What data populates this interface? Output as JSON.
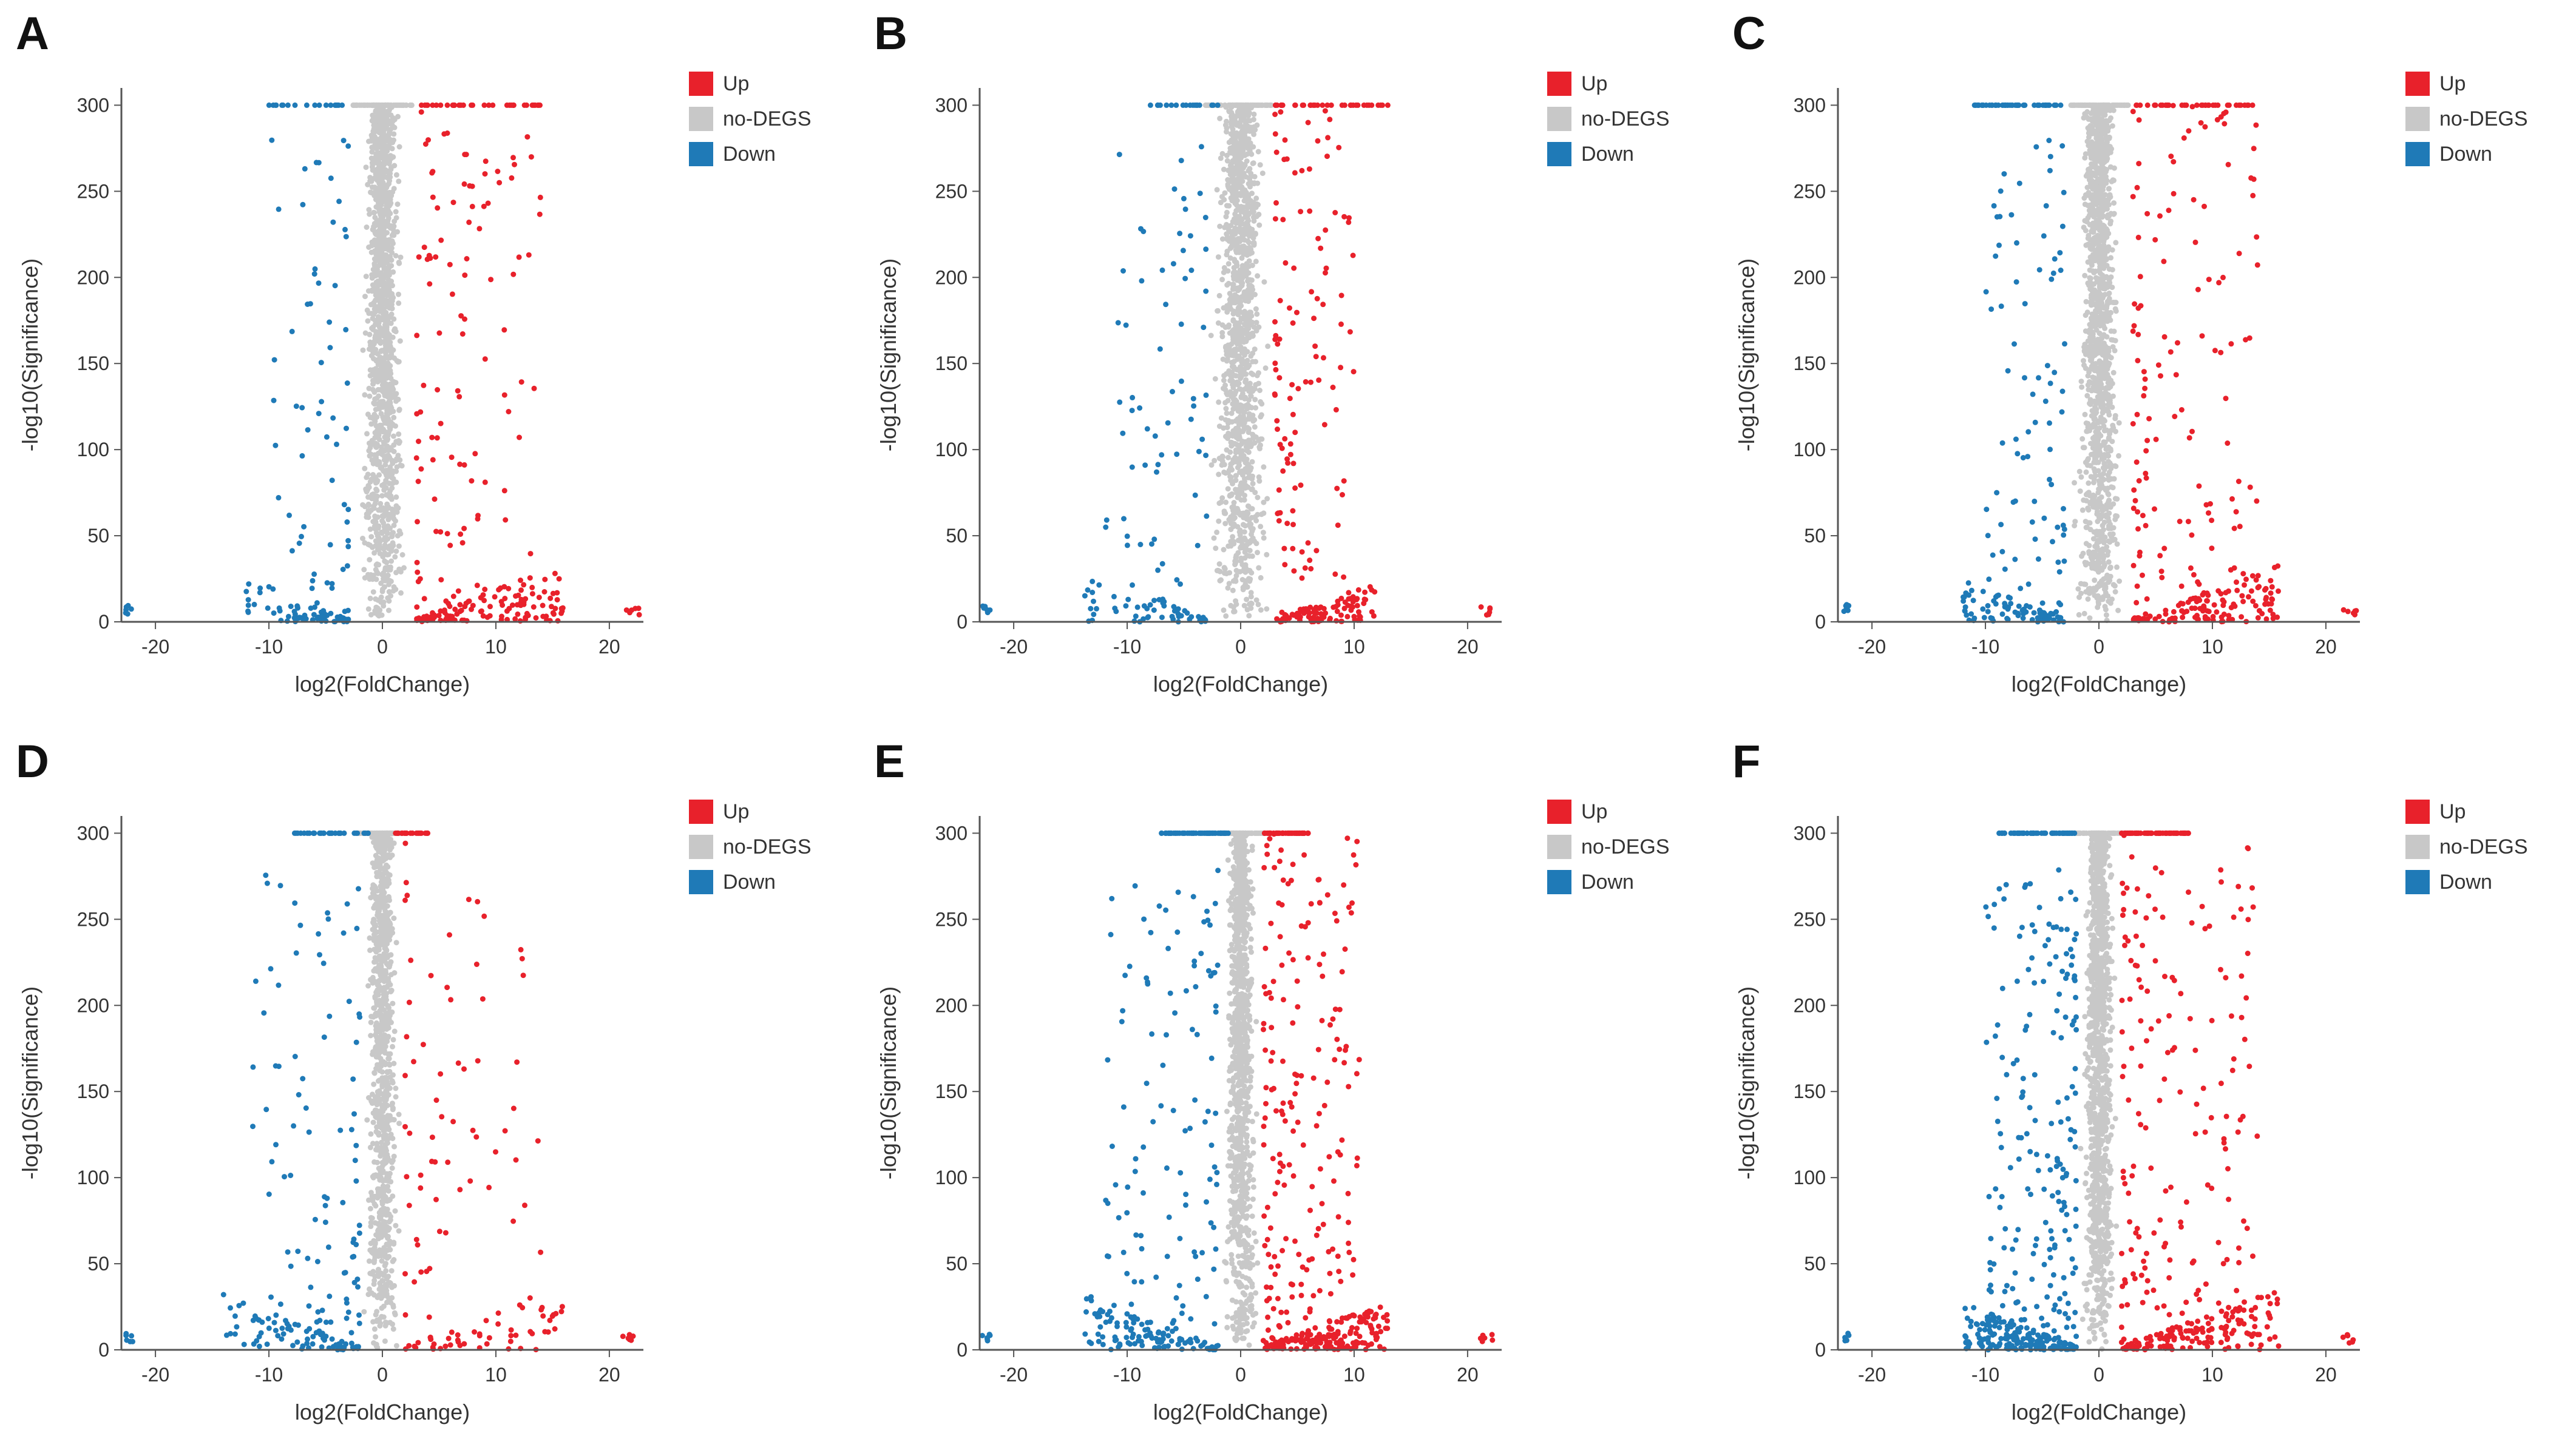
{
  "chart_data": [
    {
      "type": "scatter",
      "panel_label": "A",
      "xlabel": "log2(FoldChange)",
      "ylabel": "-log10(Significance)",
      "xlim": [
        -23,
        23
      ],
      "ylim": [
        0,
        310
      ],
      "x_ticks": [
        -20,
        -10,
        0,
        10,
        20
      ],
      "y_ticks": [
        0,
        50,
        100,
        150,
        200,
        250,
        300
      ],
      "legend": [
        "Up",
        "no-DEGS",
        "Down"
      ],
      "legend_placement": "top-right",
      "series": [
        {
          "name": "Up",
          "color": "#e8212b"
        },
        {
          "name": "no-DEGS",
          "color": "#c8c8c8"
        },
        {
          "name": "Down",
          "color": "#1f7ab7"
        }
      ],
      "profile": {
        "up_dots": 260,
        "down_dots": 150,
        "gray_dots": 1300,
        "xmax_up": 16,
        "xmin_down": -12,
        "top_up": [
          3,
          14
        ],
        "top_down": [
          -10,
          -3
        ],
        "gray_x": 2,
        "fc": 3,
        "outlier_up": 21.5,
        "outlier_down": -22
      }
    },
    {
      "type": "scatter",
      "panel_label": "B",
      "xlabel": "log2(FoldChange)",
      "ylabel": "-log10(Significance)",
      "xlim": [
        -23,
        23
      ],
      "ylim": [
        0,
        310
      ],
      "x_ticks": [
        -20,
        -10,
        0,
        10,
        20
      ],
      "y_ticks": [
        0,
        50,
        100,
        150,
        200,
        250,
        300
      ],
      "legend": [
        "Up",
        "no-DEGS",
        "Down"
      ],
      "legend_placement": "top-right",
      "series": [
        {
          "name": "Up",
          "color": "#e8212b"
        },
        {
          "name": "no-DEGS",
          "color": "#c8c8c8"
        },
        {
          "name": "Down",
          "color": "#1f7ab7"
        }
      ],
      "profile": {
        "up_dots": 240,
        "down_dots": 140,
        "gray_dots": 1300,
        "xmax_up": 12,
        "xmin_down": -14,
        "top_up": [
          3,
          13
        ],
        "top_down": [
          -9,
          -2
        ],
        "gray_x": 2.5,
        "fc": 3,
        "outlier_up": 21,
        "outlier_down": -22
      }
    },
    {
      "type": "scatter",
      "panel_label": "C",
      "xlabel": "log2(FoldChange)",
      "ylabel": "-log10(Significance)",
      "xlim": [
        -23,
        23
      ],
      "ylim": [
        0,
        310
      ],
      "x_ticks": [
        -20,
        -10,
        0,
        10,
        20
      ],
      "y_ticks": [
        0,
        50,
        100,
        150,
        200,
        250,
        300
      ],
      "legend": [
        "Up",
        "no-DEGS",
        "Down"
      ],
      "legend_placement": "top-right",
      "series": [
        {
          "name": "Up",
          "color": "#e8212b"
        },
        {
          "name": "no-DEGS",
          "color": "#c8c8c8"
        },
        {
          "name": "Down",
          "color": "#1f7ab7"
        }
      ],
      "profile": {
        "up_dots": 280,
        "down_dots": 220,
        "gray_dots": 1300,
        "xmax_up": 16,
        "xmin_down": -12,
        "top_up": [
          3,
          14
        ],
        "top_down": [
          -11,
          -3
        ],
        "gray_x": 2,
        "fc": 3,
        "outlier_up": 21.5,
        "outlier_down": -22
      }
    },
    {
      "type": "scatter",
      "panel_label": "D",
      "xlabel": "log2(FoldChange)",
      "ylabel": "-log10(Significance)",
      "xlim": [
        -23,
        23
      ],
      "ylim": [
        0,
        310
      ],
      "x_ticks": [
        -20,
        -10,
        0,
        10,
        20
      ],
      "y_ticks": [
        0,
        50,
        100,
        150,
        200,
        250,
        300
      ],
      "legend": [
        "Up",
        "no-DEGS",
        "Down"
      ],
      "legend_placement": "top-right",
      "series": [
        {
          "name": "Up",
          "color": "#e8212b"
        },
        {
          "name": "no-DEGS",
          "color": "#c8c8c8"
        },
        {
          "name": "Down",
          "color": "#1f7ab7"
        }
      ],
      "profile": {
        "up_dots": 140,
        "down_dots": 200,
        "gray_dots": 1000,
        "xmax_up": 16,
        "xmin_down": -14,
        "top_up": [
          1,
          4
        ],
        "top_down": [
          -8,
          -1
        ],
        "gray_x": 1.5,
        "fc": 2,
        "outlier_up": 21,
        "outlier_down": -22
      }
    },
    {
      "type": "scatter",
      "panel_label": "E",
      "xlabel": "log2(FoldChange)",
      "ylabel": "-log10(Significance)",
      "xlim": [
        -23,
        23
      ],
      "ylim": [
        0,
        310
      ],
      "x_ticks": [
        -20,
        -10,
        0,
        10,
        20
      ],
      "y_ticks": [
        0,
        50,
        100,
        150,
        200,
        250,
        300
      ],
      "legend": [
        "Up",
        "no-DEGS",
        "Down"
      ],
      "legend_placement": "top-right",
      "series": [
        {
          "name": "Up",
          "color": "#e8212b"
        },
        {
          "name": "no-DEGS",
          "color": "#c8c8c8"
        },
        {
          "name": "Down",
          "color": "#1f7ab7"
        }
      ],
      "profile": {
        "up_dots": 420,
        "down_dots": 280,
        "gray_dots": 1100,
        "xmax_up": 13,
        "xmin_down": -14,
        "top_up": [
          2,
          6
        ],
        "top_down": [
          -7,
          -1
        ],
        "gray_x": 1.5,
        "fc": 2,
        "outlier_up": 21,
        "outlier_down": -22
      }
    },
    {
      "type": "scatter",
      "panel_label": "F",
      "xlabel": "log2(FoldChange)",
      "ylabel": "-log10(Significance)",
      "xlim": [
        -23,
        23
      ],
      "ylim": [
        0,
        310
      ],
      "x_ticks": [
        -20,
        -10,
        0,
        10,
        20
      ],
      "y_ticks": [
        0,
        50,
        100,
        150,
        200,
        250,
        300
      ],
      "legend": [
        "Up",
        "no-DEGS",
        "Down"
      ],
      "legend_placement": "top-right",
      "series": [
        {
          "name": "Up",
          "color": "#e8212b"
        },
        {
          "name": "no-DEGS",
          "color": "#c8c8c8"
        },
        {
          "name": "Down",
          "color": "#1f7ab7"
        }
      ],
      "profile": {
        "up_dots": 380,
        "down_dots": 420,
        "gray_dots": 1200,
        "xmax_up": 16,
        "xmin_down": -12,
        "top_up": [
          2,
          8
        ],
        "top_down": [
          -9,
          -2
        ],
        "gray_x": 1.5,
        "fc": 2,
        "outlier_up": 21.5,
        "outlier_down": -22
      }
    }
  ]
}
